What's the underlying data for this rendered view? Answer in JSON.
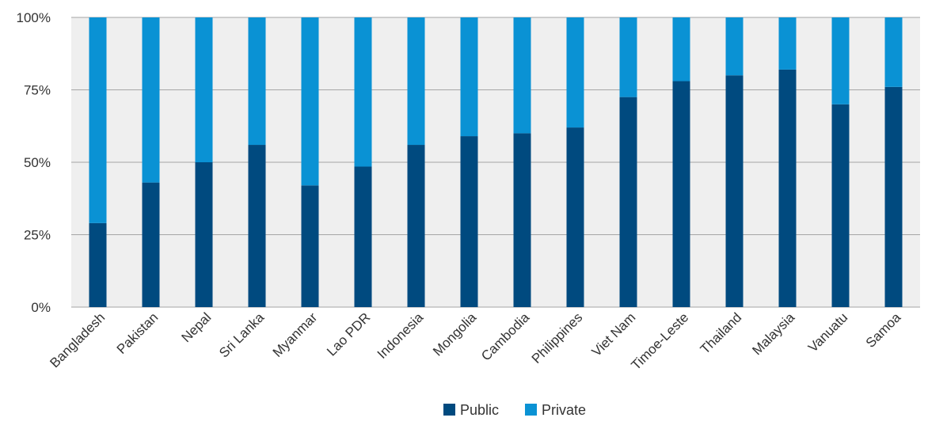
{
  "chart_data": {
    "type": "bar",
    "stacked": true,
    "normalized": true,
    "categories": [
      "Bangladesh",
      "Pakistan",
      "Nepal",
      "Sri Lanka",
      "Myanmar",
      "Lao PDR",
      "Indonesia",
      "Mongolia",
      "Cambodia",
      "Philippines",
      "Viet Nam",
      "Timoe-Leste",
      "Thailand",
      "Malaysia",
      "Vanuatu",
      "Samoa"
    ],
    "series": [
      {
        "name": "Public",
        "color": "#004a7f",
        "values": [
          29,
          43,
          50,
          56,
          42,
          48.5,
          56,
          59,
          60,
          62,
          72.5,
          78,
          80,
          82,
          70,
          76
        ]
      },
      {
        "name": "Private",
        "color": "#0a92d4",
        "values": [
          71,
          57,
          50,
          44,
          58,
          51.5,
          44,
          41,
          40,
          38,
          27.5,
          22,
          20,
          18,
          30,
          24
        ]
      }
    ],
    "yticks": [
      "0%",
      "25%",
      "50%",
      "75%",
      "100%"
    ],
    "ylim": [
      0,
      100
    ],
    "grid": true,
    "legend_position": "bottom-center",
    "plot_background": "#efefef",
    "title": "",
    "xlabel": "",
    "ylabel": ""
  }
}
